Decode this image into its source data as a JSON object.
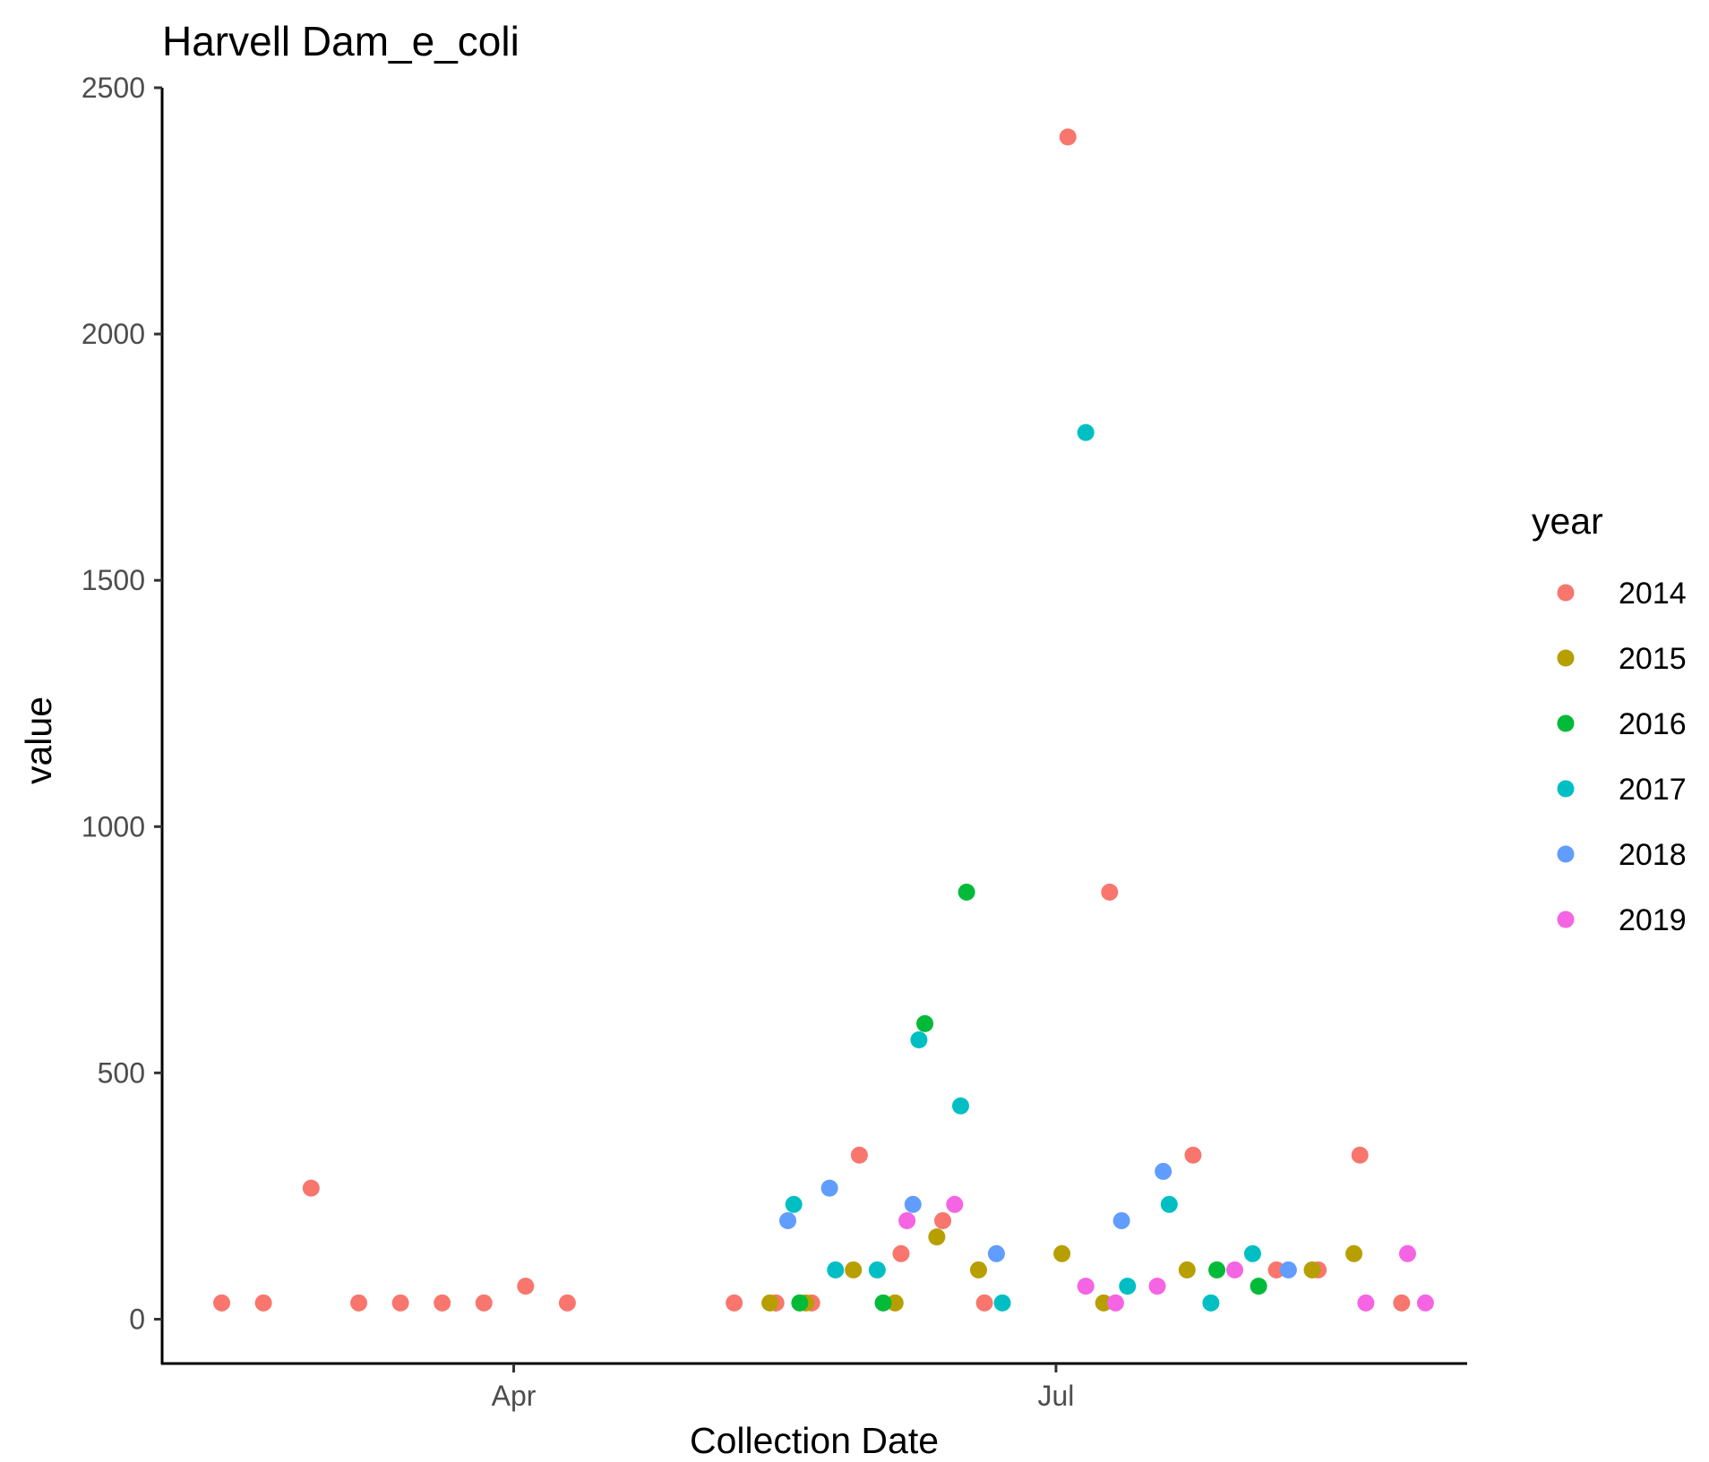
{
  "chart_data": {
    "type": "scatter",
    "title": "Harvell Dam_e_coli",
    "xlabel": "Collection Date",
    "ylabel": "value",
    "x_axis_type": "date",
    "xlim": [
      "2000-02-02",
      "2000-09-08"
    ],
    "ylim": [
      -90,
      2500
    ],
    "x_ticks": [
      {
        "label": "Apr",
        "date": "2000-04-01"
      },
      {
        "label": "Jul",
        "date": "2000-07-01"
      }
    ],
    "y_ticks": [
      0,
      500,
      1000,
      1500,
      2000,
      2500
    ],
    "grid": false,
    "legend": {
      "title": "year",
      "position": "right"
    },
    "series": [
      {
        "name": "2014",
        "color": "#F8766D",
        "points": [
          {
            "x": "2000-02-12",
            "y": 33
          },
          {
            "x": "2000-02-19",
            "y": 33
          },
          {
            "x": "2000-02-27",
            "y": 266
          },
          {
            "x": "2000-03-06",
            "y": 33
          },
          {
            "x": "2000-03-13",
            "y": 33
          },
          {
            "x": "2000-03-20",
            "y": 33
          },
          {
            "x": "2000-03-27",
            "y": 33
          },
          {
            "x": "2000-04-03",
            "y": 67
          },
          {
            "x": "2000-04-10",
            "y": 33
          },
          {
            "x": "2000-05-08",
            "y": 33
          },
          {
            "x": "2000-05-15",
            "y": 33
          },
          {
            "x": "2000-05-21",
            "y": 33
          },
          {
            "x": "2000-05-29",
            "y": 333
          },
          {
            "x": "2000-06-05",
            "y": 133
          },
          {
            "x": "2000-06-12",
            "y": 200
          },
          {
            "x": "2000-06-19",
            "y": 33
          },
          {
            "x": "2000-07-03",
            "y": 2400
          },
          {
            "x": "2000-07-10",
            "y": 867
          },
          {
            "x": "2000-07-24",
            "y": 333
          },
          {
            "x": "2000-08-07",
            "y": 100
          },
          {
            "x": "2000-08-14",
            "y": 100
          },
          {
            "x": "2000-08-21",
            "y": 333
          },
          {
            "x": "2000-08-28",
            "y": 33
          }
        ]
      },
      {
        "name": "2015",
        "color": "#B79F00",
        "points": [
          {
            "x": "2000-05-14",
            "y": 33
          },
          {
            "x": "2000-05-20",
            "y": 33
          },
          {
            "x": "2000-05-28",
            "y": 100
          },
          {
            "x": "2000-06-04",
            "y": 33
          },
          {
            "x": "2000-06-11",
            "y": 167
          },
          {
            "x": "2000-06-18",
            "y": 100
          },
          {
            "x": "2000-07-02",
            "y": 133
          },
          {
            "x": "2000-07-09",
            "y": 33
          },
          {
            "x": "2000-07-23",
            "y": 100
          },
          {
            "x": "2000-08-13",
            "y": 100
          },
          {
            "x": "2000-08-20",
            "y": 133
          }
        ]
      },
      {
        "name": "2016",
        "color": "#00BA38",
        "points": [
          {
            "x": "2000-05-19",
            "y": 33
          },
          {
            "x": "2000-06-02",
            "y": 33
          },
          {
            "x": "2000-06-09",
            "y": 600
          },
          {
            "x": "2000-06-16",
            "y": 867
          },
          {
            "x": "2000-07-28",
            "y": 100
          },
          {
            "x": "2000-08-04",
            "y": 67
          }
        ]
      },
      {
        "name": "2017",
        "color": "#00BFC4",
        "points": [
          {
            "x": "2000-05-18",
            "y": 233
          },
          {
            "x": "2000-05-25",
            "y": 100
          },
          {
            "x": "2000-06-01",
            "y": 100
          },
          {
            "x": "2000-06-08",
            "y": 567
          },
          {
            "x": "2000-06-15",
            "y": 433
          },
          {
            "x": "2000-06-22",
            "y": 33
          },
          {
            "x": "2000-07-06",
            "y": 1800
          },
          {
            "x": "2000-07-13",
            "y": 67
          },
          {
            "x": "2000-07-20",
            "y": 233
          },
          {
            "x": "2000-07-27",
            "y": 33
          },
          {
            "x": "2000-08-03",
            "y": 133
          }
        ]
      },
      {
        "name": "2018",
        "color": "#619CFF",
        "points": [
          {
            "x": "2000-05-17",
            "y": 200
          },
          {
            "x": "2000-05-24",
            "y": 266
          },
          {
            "x": "2000-06-07",
            "y": 233
          },
          {
            "x": "2000-06-21",
            "y": 133
          },
          {
            "x": "2000-07-12",
            "y": 200
          },
          {
            "x": "2000-07-19",
            "y": 300
          },
          {
            "x": "2000-08-09",
            "y": 100
          }
        ]
      },
      {
        "name": "2019",
        "color": "#F564E3",
        "points": [
          {
            "x": "2000-06-06",
            "y": 200
          },
          {
            "x": "2000-06-14",
            "y": 233
          },
          {
            "x": "2000-07-06",
            "y": 67
          },
          {
            "x": "2000-07-11",
            "y": 33
          },
          {
            "x": "2000-07-18",
            "y": 67
          },
          {
            "x": "2000-07-31",
            "y": 100
          },
          {
            "x": "2000-08-22",
            "y": 33
          },
          {
            "x": "2000-08-29",
            "y": 133
          },
          {
            "x": "2000-09-01",
            "y": 33
          }
        ]
      }
    ]
  }
}
